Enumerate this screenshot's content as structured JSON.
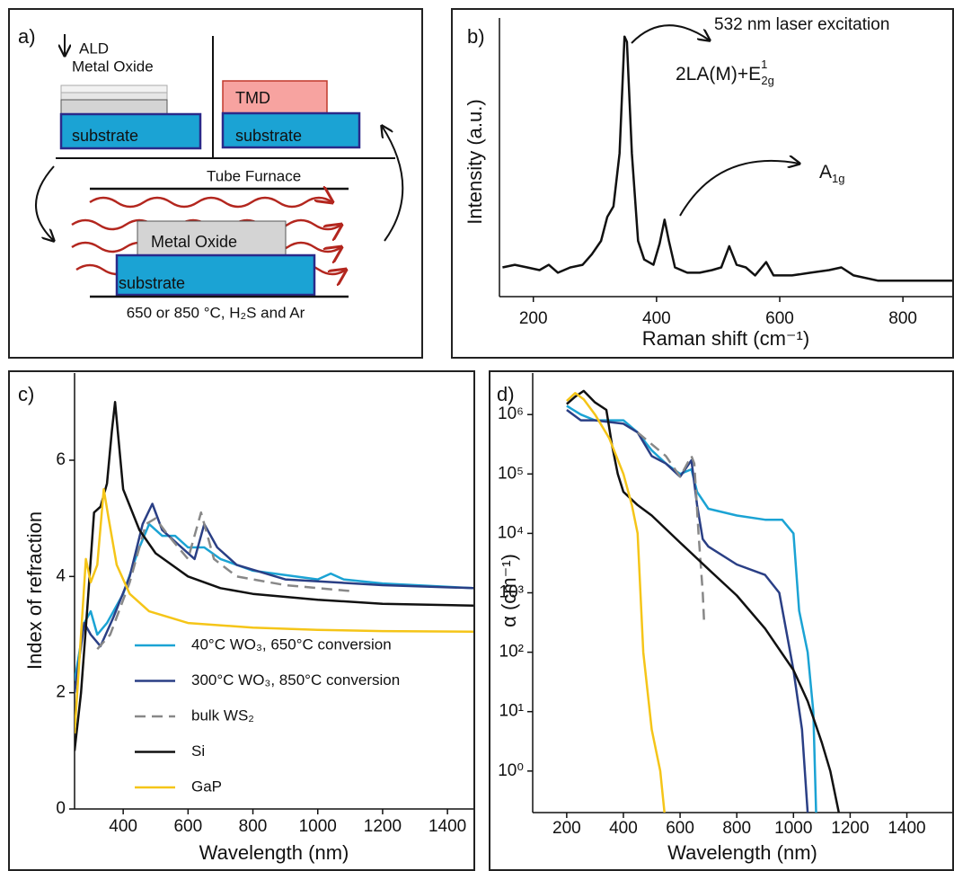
{
  "diagram": {
    "label": "a)",
    "deposition": [
      "ALD",
      "Metal Oxide"
    ],
    "tmd": "TMD",
    "substrates": [
      "substrate",
      "substrate",
      "substrate"
    ],
    "furnace": "Tube Furnace",
    "oxide": "Metal Oxide",
    "conditions": "650 or 850 °C, H₂S and Ar"
  },
  "chart_data": [
    {
      "type": "line",
      "panel_label": "b)",
      "xlabel": "Raman shift (cm⁻¹)",
      "ylabel": "Intensity (a.u.)",
      "annotations": [
        "532 nm laser excitation"
      ],
      "peak_labels": [
        {
          "text": "2LA(M)+E",
          "sup": "1",
          "sub": "2g"
        },
        {
          "text": "A",
          "sub": "1g"
        }
      ],
      "color": "#111111",
      "x": [
        150,
        170,
        190,
        210,
        225,
        240,
        260,
        280,
        295,
        310,
        320,
        330,
        340,
        348,
        352,
        360,
        370,
        380,
        395,
        405,
        413,
        420,
        430,
        450,
        470,
        490,
        505,
        518,
        530,
        545,
        560,
        578,
        590,
        620,
        650,
        680,
        700,
        720,
        760,
        800,
        840,
        880
      ],
      "values": [
        0.11,
        0.12,
        0.11,
        0.1,
        0.12,
        0.09,
        0.11,
        0.12,
        0.16,
        0.21,
        0.3,
        0.34,
        0.54,
        0.98,
        0.96,
        0.54,
        0.21,
        0.14,
        0.12,
        0.2,
        0.29,
        0.21,
        0.11,
        0.09,
        0.09,
        0.1,
        0.11,
        0.19,
        0.12,
        0.11,
        0.08,
        0.13,
        0.08,
        0.08,
        0.09,
        0.1,
        0.11,
        0.08,
        0.06,
        0.06,
        0.06,
        0.06
      ],
      "xlim": [
        145,
        880
      ],
      "ylim": [
        0,
        1.05
      ],
      "xticks": [
        200,
        400,
        600,
        800
      ]
    },
    {
      "type": "line",
      "panel_label": "c)",
      "xlabel": "Wavelength (nm)",
      "ylabel": "Index of refraction",
      "legend": true,
      "xlim": [
        250,
        1480
      ],
      "ylim": [
        0,
        7.5
      ],
      "xticks": [
        400,
        600,
        800,
        1000,
        1200,
        1400
      ],
      "yticks": [
        0,
        2,
        4,
        6
      ],
      "series": [
        {
          "name": "40°C WO₃, 650°C conversion",
          "color": "#1ba3d4",
          "x": [
            250,
            280,
            300,
            320,
            350,
            400,
            450,
            480,
            520,
            560,
            600,
            650,
            700,
            800,
            1000,
            1040,
            1080,
            1200,
            1480
          ],
          "values": [
            2.2,
            3.2,
            3.4,
            3.0,
            3.2,
            3.7,
            4.5,
            4.9,
            4.7,
            4.7,
            4.5,
            4.5,
            4.3,
            4.1,
            3.95,
            4.05,
            3.95,
            3.88,
            3.8
          ]
        },
        {
          "name": "300°C WO₃, 850°C conversion",
          "color": "#2a3f85",
          "x": [
            250,
            280,
            300,
            330,
            370,
            420,
            460,
            490,
            520,
            580,
            620,
            650,
            690,
            750,
            900,
            1200,
            1480
          ],
          "values": [
            2.0,
            3.2,
            3.0,
            2.8,
            3.3,
            4.0,
            4.9,
            5.25,
            4.8,
            4.5,
            4.3,
            4.9,
            4.5,
            4.2,
            3.95,
            3.85,
            3.8
          ]
        },
        {
          "name": "bulk WS₂",
          "color": "#888888",
          "dash": true,
          "x": [
            320,
            360,
            420,
            470,
            500,
            540,
            600,
            640,
            680,
            750,
            900,
            1100
          ],
          "values": [
            2.75,
            3.0,
            3.9,
            4.9,
            5.0,
            4.7,
            4.3,
            5.1,
            4.3,
            4.0,
            3.85,
            3.75
          ]
        },
        {
          "name": "Si",
          "color": "#111111",
          "x": [
            250,
            270,
            290,
            310,
            330,
            350,
            365,
            375,
            385,
            400,
            450,
            500,
            600,
            700,
            800,
            1000,
            1200,
            1480
          ],
          "values": [
            1.0,
            2.0,
            3.5,
            5.1,
            5.2,
            5.6,
            6.5,
            7.0,
            6.4,
            5.5,
            4.8,
            4.4,
            4.0,
            3.8,
            3.7,
            3.6,
            3.53,
            3.5
          ]
        },
        {
          "name": "GaP",
          "color": "#f5c518",
          "x": [
            250,
            270,
            285,
            300,
            320,
            340,
            355,
            380,
            420,
            480,
            600,
            800,
            1000,
            1200,
            1480
          ],
          "values": [
            1.3,
            3.0,
            4.3,
            3.9,
            4.2,
            5.5,
            5.0,
            4.2,
            3.7,
            3.4,
            3.2,
            3.12,
            3.08,
            3.06,
            3.05
          ]
        }
      ]
    },
    {
      "type": "line",
      "panel_label": "d)",
      "xlabel": "Wavelength (nm)",
      "ylabel": "α (cm⁻¹)",
      "legend": false,
      "log_y": true,
      "xlim": [
        80,
        1560
      ],
      "ylim": [
        0.2,
        5000000
      ],
      "xticks": [
        200,
        400,
        600,
        800,
        1000,
        1200,
        1400
      ],
      "yticks": [
        {
          "value": 1,
          "label": "10⁰"
        },
        {
          "value": 10,
          "label": "10¹"
        },
        {
          "value": 100,
          "label": "10²"
        },
        {
          "value": 1000,
          "label": "10³"
        },
        {
          "value": 10000,
          "label": "10⁴"
        },
        {
          "value": 100000,
          "label": "10⁵"
        },
        {
          "value": 1000000,
          "label": "10⁶"
        }
      ],
      "series": [
        {
          "name": "40°C WO₃, 650°C conversion",
          "color": "#1ba3d4",
          "x": [
            200,
            250,
            300,
            400,
            450,
            500,
            550,
            600,
            640,
            660,
            700,
            800,
            900,
            960,
            1000,
            1020,
            1050,
            1070,
            1080
          ],
          "values": [
            1400000,
            1000000,
            800000,
            800000,
            500000,
            250000,
            150000,
            100000,
            120000,
            50000,
            26000,
            20000,
            17000,
            17000,
            10000,
            500,
            100,
            10,
            0.2
          ]
        },
        {
          "name": "300°C WO₃, 850°C conversion",
          "color": "#2a3f85",
          "x": [
            200,
            250,
            300,
            400,
            450,
            500,
            550,
            600,
            640,
            660,
            680,
            700,
            800,
            900,
            950,
            1000,
            1030,
            1050
          ],
          "values": [
            1200000,
            800000,
            800000,
            700000,
            500000,
            200000,
            150000,
            90000,
            170000,
            30000,
            8000,
            6000,
            3000,
            2000,
            1000,
            50,
            5,
            0.2
          ]
        },
        {
          "name": "bulk WS₂",
          "color": "#888888",
          "dash": true,
          "x": [
            450,
            550,
            600,
            640,
            650,
            665,
            680,
            685
          ],
          "values": [
            500000,
            200000,
            90000,
            200000,
            150000,
            10000,
            1000,
            300
          ]
        },
        {
          "name": "Si",
          "color": "#111111",
          "x": [
            200,
            230,
            260,
            300,
            340,
            360,
            380,
            400,
            450,
            500,
            600,
            700,
            800,
            900,
            1000,
            1050,
            1100,
            1130,
            1160
          ],
          "values": [
            1500000,
            2000000,
            2500000,
            1600000,
            1200000,
            300000,
            100000,
            50000,
            30000,
            20000,
            7000,
            2500,
            900,
            250,
            50,
            15,
            3,
            1,
            0.2
          ]
        },
        {
          "name": "GaP",
          "color": "#f5c518",
          "x": [
            200,
            230,
            260,
            300,
            350,
            400,
            430,
            450,
            470,
            500,
            530,
            545
          ],
          "values": [
            1700000,
            2300000,
            1800000,
            1000000,
            400000,
            100000,
            30000,
            10000,
            100,
            5,
            1,
            0.2
          ]
        }
      ]
    }
  ]
}
